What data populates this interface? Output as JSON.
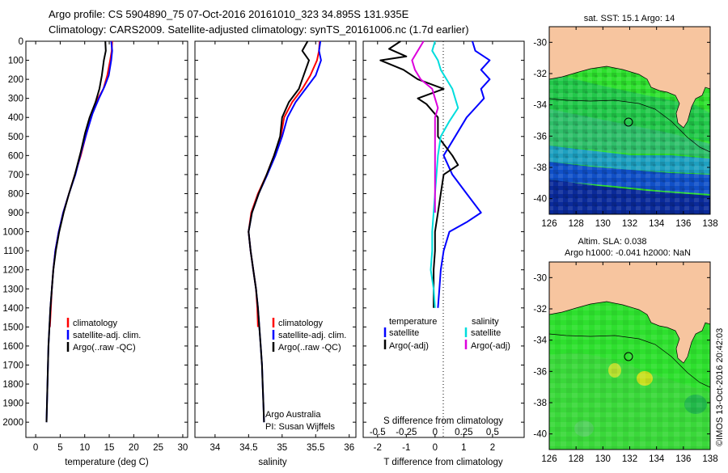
{
  "title_line1": "Argo profile: CS 5904890_75 07-Oct-2016 20161010_323 34.895S 131.935E",
  "title_line2": "Climatology: CARS2009. Satellite-adjusted climatology: synTS_20161006.nc (1.7d earlier)",
  "map1_title": "sat. SST: 15.1 Argo: 14",
  "map2_title_line1": "Altim. SLA: 0.038",
  "map2_title_line2": "Argo h1000: -0.041 h2000: NaN",
  "copyright": "©IMOS 13-Oct-2016 20:42:03",
  "credit_line1": "Argo Australia",
  "credit_line2": "PI: Susan Wijffels",
  "colors": {
    "climatology": "#ff0000",
    "satellite": "#0000ff",
    "argo": "#000000",
    "sal_sat": "#00dddd",
    "sal_argo": "#dd00dd",
    "land": "#f7c59f"
  },
  "chart_data": [
    {
      "type": "line",
      "id": "temperature",
      "xlabel": "temperature (deg C)",
      "ylabel": "",
      "xlim": [
        -2,
        31
      ],
      "ylim": [
        0,
        2080
      ],
      "x_ticks": [
        0,
        5,
        10,
        15,
        20,
        25,
        30
      ],
      "y_ticks": [
        0,
        100,
        200,
        300,
        400,
        500,
        600,
        700,
        800,
        900,
        1000,
        1100,
        1200,
        1300,
        1400,
        1500,
        1600,
        1700,
        1800,
        1900,
        2000
      ],
      "legend": [
        "climatology",
        "satellite-adj. clim.",
        "Argo(..raw -QC)"
      ],
      "series": [
        {
          "name": "climatology",
          "color": "#ff0000",
          "points": [
            [
              15.6,
              0
            ],
            [
              15.5,
              50
            ],
            [
              15.2,
              100
            ],
            [
              14.6,
              180
            ],
            [
              13.8,
              250
            ],
            [
              12.3,
              320
            ],
            [
              11.3,
              400
            ],
            [
              10.2,
              500
            ],
            [
              9.2,
              600
            ],
            [
              8.0,
              700
            ],
            [
              6.8,
              800
            ],
            [
              5.6,
              900
            ],
            [
              4.7,
              1000
            ],
            [
              4.0,
              1100
            ],
            [
              3.6,
              1200
            ],
            [
              3.3,
              1300
            ],
            [
              3.1,
              1400
            ],
            [
              2.9,
              1500
            ]
          ]
        },
        {
          "name": "satellite-adj. clim.",
          "color": "#0000ff",
          "points": [
            [
              15.4,
              0
            ],
            [
              15.6,
              50
            ],
            [
              15.4,
              100
            ],
            [
              14.9,
              180
            ],
            [
              14.0,
              240
            ],
            [
              12.9,
              300
            ],
            [
              11.6,
              380
            ],
            [
              10.4,
              480
            ],
            [
              9.3,
              580
            ],
            [
              8.1,
              700
            ],
            [
              6.8,
              800
            ],
            [
              5.6,
              900
            ],
            [
              4.7,
              1000
            ],
            [
              4.0,
              1100
            ],
            [
              3.6,
              1200
            ],
            [
              3.3,
              1300
            ],
            [
              3.0,
              1400
            ],
            [
              2.8,
              1500
            ],
            [
              2.6,
              1600
            ],
            [
              2.5,
              1700
            ],
            [
              2.4,
              1800
            ],
            [
              2.3,
              1900
            ],
            [
              2.2,
              2000
            ]
          ]
        },
        {
          "name": "Argo(..raw -QC)",
          "color": "#000000",
          "points": [
            [
              14.2,
              0
            ],
            [
              14.3,
              50
            ],
            [
              13.9,
              100
            ],
            [
              13.5,
              180
            ],
            [
              13.0,
              250
            ],
            [
              12.2,
              320
            ],
            [
              11.0,
              400
            ],
            [
              10.1,
              480
            ],
            [
              9.2,
              580
            ],
            [
              8.0,
              700
            ],
            [
              6.8,
              800
            ],
            [
              5.7,
              900
            ],
            [
              4.8,
              1000
            ],
            [
              4.1,
              1100
            ],
            [
              3.6,
              1200
            ],
            [
              3.3,
              1300
            ],
            [
              3.0,
              1400
            ],
            [
              2.8,
              1500
            ],
            [
              2.6,
              1600
            ],
            [
              2.5,
              1700
            ],
            [
              2.4,
              1800
            ],
            [
              2.3,
              1900
            ],
            [
              2.2,
              2000
            ]
          ]
        }
      ]
    },
    {
      "type": "line",
      "id": "salinity",
      "xlabel": "salinity",
      "ylabel": "",
      "xlim": [
        33.7,
        36.1
      ],
      "ylim": [
        0,
        2080
      ],
      "x_ticks": [
        34,
        34.5,
        35,
        35.5,
        36
      ],
      "legend": [
        "climatology",
        "satellite-adj. clim.",
        "Argo(..raw -QC)"
      ],
      "series": [
        {
          "name": "climatology",
          "color": "#ff0000",
          "points": [
            [
              35.56,
              0
            ],
            [
              35.55,
              50
            ],
            [
              35.52,
              100
            ],
            [
              35.42,
              180
            ],
            [
              35.3,
              250
            ],
            [
              35.15,
              320
            ],
            [
              35.03,
              400
            ],
            [
              34.98,
              500
            ],
            [
              34.88,
              600
            ],
            [
              34.77,
              700
            ],
            [
              34.64,
              800
            ],
            [
              34.54,
              900
            ],
            [
              34.5,
              1000
            ],
            [
              34.53,
              1100
            ],
            [
              34.57,
              1200
            ],
            [
              34.61,
              1300
            ],
            [
              34.63,
              1400
            ],
            [
              34.64,
              1500
            ]
          ]
        },
        {
          "name": "satellite-adj. clim.",
          "color": "#0000ff",
          "points": [
            [
              35.57,
              0
            ],
            [
              35.55,
              50
            ],
            [
              35.58,
              100
            ],
            [
              35.5,
              180
            ],
            [
              35.35,
              250
            ],
            [
              35.2,
              320
            ],
            [
              35.08,
              400
            ],
            [
              35.0,
              500
            ],
            [
              34.9,
              600
            ],
            [
              34.78,
              700
            ],
            [
              34.65,
              800
            ],
            [
              34.55,
              900
            ],
            [
              34.5,
              1000
            ],
            [
              34.53,
              1100
            ],
            [
              34.57,
              1200
            ],
            [
              34.61,
              1300
            ],
            [
              34.64,
              1400
            ],
            [
              34.66,
              1500
            ],
            [
              34.68,
              1600
            ],
            [
              34.7,
              1700
            ],
            [
              34.71,
              1800
            ],
            [
              34.72,
              1900
            ],
            [
              34.73,
              2000
            ]
          ]
        },
        {
          "name": "Argo(..raw -QC)",
          "color": "#000000",
          "points": [
            [
              35.38,
              0
            ],
            [
              35.3,
              50
            ],
            [
              35.4,
              100
            ],
            [
              35.32,
              180
            ],
            [
              35.25,
              250
            ],
            [
              35.1,
              320
            ],
            [
              35.0,
              400
            ],
            [
              34.97,
              500
            ],
            [
              34.88,
              600
            ],
            [
              34.77,
              700
            ],
            [
              34.65,
              800
            ],
            [
              34.55,
              900
            ],
            [
              34.5,
              1000
            ],
            [
              34.53,
              1100
            ],
            [
              34.57,
              1200
            ],
            [
              34.61,
              1300
            ],
            [
              34.64,
              1400
            ],
            [
              34.66,
              1500
            ],
            [
              34.68,
              1600
            ],
            [
              34.7,
              1700
            ],
            [
              34.71,
              1800
            ],
            [
              34.72,
              1900
            ],
            [
              34.73,
              2000
            ]
          ]
        }
      ]
    },
    {
      "type": "line",
      "id": "difference",
      "xlabel": "T difference from climatology",
      "xlabel_top": "S difference from climatology",
      "xlim": [
        -2.5,
        3.1
      ],
      "ylim": [
        0,
        2080
      ],
      "x_ticks": [
        -2,
        -1,
        0,
        1,
        2
      ],
      "s_ticks": [
        "-0.5",
        "-0.25",
        "0",
        "0.25",
        "0.5"
      ],
      "legend_temperature": {
        "title": "temperature",
        "items": [
          "satellite",
          "Argo(-adj)"
        ]
      },
      "legend_salinity": {
        "title": "salinity",
        "items": [
          "satellite",
          "Argo(-adj)"
        ]
      },
      "series": [
        {
          "name": "temperature satellite",
          "color": "#0000ff",
          "points": [
            [
              1.3,
              0
            ],
            [
              1.4,
              50
            ],
            [
              1.9,
              100
            ],
            [
              1.6,
              150
            ],
            [
              1.9,
              200
            ],
            [
              1.6,
              250
            ],
            [
              1.7,
              300
            ],
            [
              1.4,
              350
            ],
            [
              1.1,
              400
            ],
            [
              0.7,
              500
            ],
            [
              0.3,
              600
            ],
            [
              0.6,
              700
            ],
            [
              1.1,
              800
            ],
            [
              1.6,
              900
            ],
            [
              1.1,
              950
            ],
            [
              0.5,
              1000
            ],
            [
              0.3,
              1100
            ],
            [
              0.2,
              1200
            ],
            [
              0.15,
              1300
            ],
            [
              0.1,
              1400
            ]
          ]
        },
        {
          "name": "temperature Argo(-adj)",
          "color": "#000000",
          "points": [
            [
              -1.2,
              0
            ],
            [
              -1.6,
              40
            ],
            [
              -1.0,
              80
            ],
            [
              -1.9,
              100
            ],
            [
              -1.1,
              150
            ],
            [
              -0.6,
              200
            ],
            [
              0.3,
              250
            ],
            [
              -0.6,
              300
            ],
            [
              -0.3,
              330
            ],
            [
              0.1,
              400
            ],
            [
              0.1,
              500
            ],
            [
              0.6,
              600
            ],
            [
              0.8,
              650
            ],
            [
              0.3,
              700
            ],
            [
              0.2,
              800
            ],
            [
              0.1,
              900
            ],
            [
              0.0,
              1000
            ],
            [
              0.0,
              1100
            ],
            [
              -0.05,
              1200
            ],
            [
              -0.05,
              1300
            ],
            [
              -0.05,
              1400
            ]
          ]
        },
        {
          "name": "salinity satellite",
          "color": "#00dddd",
          "points": [
            [
              0.0,
              0
            ],
            [
              -0.1,
              50
            ],
            [
              0.1,
              100
            ],
            [
              0.2,
              150
            ],
            [
              0.6,
              250
            ],
            [
              0.7,
              300
            ],
            [
              0.8,
              350
            ],
            [
              0.5,
              420
            ],
            [
              0.2,
              500
            ],
            [
              0.1,
              600
            ],
            [
              0.05,
              700
            ],
            [
              0.0,
              800
            ],
            [
              -0.1,
              1000
            ],
            [
              -0.1,
              1100
            ],
            [
              -0.15,
              1200
            ],
            [
              -0.05,
              1300
            ],
            [
              0.0,
              1400
            ]
          ]
        },
        {
          "name": "salinity Argo(-adj)",
          "color": "#dd00dd",
          "points": [
            [
              -0.4,
              0
            ],
            [
              -0.6,
              50
            ],
            [
              -0.8,
              100
            ],
            [
              -0.7,
              150
            ],
            [
              -0.5,
              200
            ],
            [
              -0.1,
              250
            ],
            [
              0.0,
              300
            ],
            [
              0.1,
              350
            ],
            [
              0.0,
              400
            ],
            [
              0.0,
              500
            ],
            [
              0.0,
              600
            ],
            [
              0.0,
              700
            ],
            [
              0.0,
              800
            ],
            [
              0.0,
              900
            ]
          ]
        }
      ]
    },
    {
      "type": "heatmap",
      "id": "sst_map",
      "xlim": [
        126,
        138
      ],
      "ylim": [
        -41,
        -29
      ],
      "x_ticks": [
        126,
        128,
        130,
        132,
        134,
        136,
        138
      ],
      "y_ticks": [
        -30,
        -32,
        -34,
        -36,
        -38,
        -40
      ],
      "marker": {
        "lon": 131.935,
        "lat": -34.895
      }
    },
    {
      "type": "heatmap",
      "id": "sla_map",
      "xlim": [
        126,
        138
      ],
      "ylim": [
        -41,
        -29
      ],
      "x_ticks": [
        126,
        128,
        130,
        132,
        134,
        136,
        138
      ],
      "y_ticks": [
        -30,
        -32,
        -34,
        -36,
        -38,
        -40
      ],
      "marker": {
        "lon": 131.935,
        "lat": -34.895
      }
    }
  ]
}
